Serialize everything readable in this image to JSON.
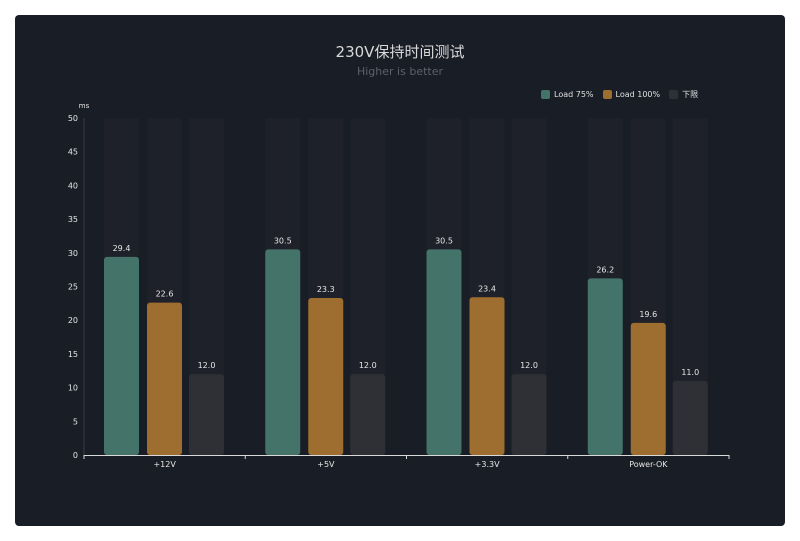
{
  "title": "230V保持时间测试",
  "subtitle": "Higher is better",
  "colors": {
    "background": "#191d25",
    "series": [
      "#44736a",
      "#9d6e2f",
      "#2f3035"
    ],
    "bar_background": "#1e2129",
    "axis_text": "#e6e6e6",
    "label_text": "#e6e6e6"
  },
  "chart_data": {
    "type": "bar",
    "title": "230V保持时间测试",
    "subtitle": "Higher is better",
    "xlabel": "",
    "ylabel": "ms",
    "ylim": [
      0,
      50
    ],
    "yticks": [
      0,
      5,
      10,
      15,
      20,
      25,
      30,
      35,
      40,
      45,
      50
    ],
    "grid": false,
    "legend_position": "top-right",
    "categories": [
      "+12V",
      "+5V",
      "+3.3V",
      "Power-OK"
    ],
    "series": [
      {
        "name": "Load 75%",
        "values": [
          29.4,
          30.5,
          30.5,
          26.2
        ],
        "labels": [
          "29.4",
          "30.5",
          "30.5",
          "26.2"
        ]
      },
      {
        "name": "Load 100%",
        "values": [
          22.6,
          23.3,
          23.4,
          19.6
        ],
        "labels": [
          "22.6",
          "23.3",
          "23.4",
          "19.6"
        ]
      },
      {
        "name": "下限",
        "values": [
          12.0,
          12.0,
          12.0,
          11.0
        ],
        "labels": [
          "12.0",
          "12.0",
          "12.0",
          "11.0"
        ]
      }
    ]
  }
}
